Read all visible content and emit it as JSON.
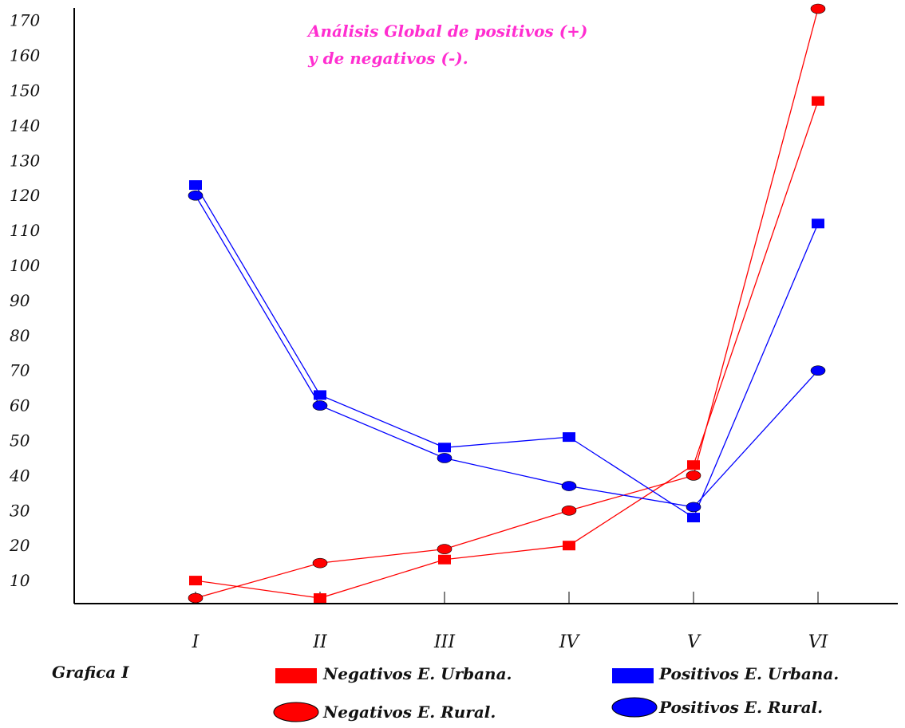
{
  "chart_data": {
    "type": "line",
    "title_lines": [
      "Análisis Global de positivos (+)",
      "y de negativos (-)."
    ],
    "caption": "Grafica I",
    "categories": [
      "I",
      "II",
      "III",
      "IV",
      "V",
      "VI"
    ],
    "y_ticks": [
      10,
      20,
      30,
      40,
      50,
      60,
      70,
      80,
      90,
      100,
      110,
      120,
      130,
      140,
      150,
      160,
      170
    ],
    "ylim": [
      0,
      170
    ],
    "grid": false,
    "legend_position": "bottom",
    "series": [
      {
        "name": "Negativos E. Urbana.",
        "color": "#ff0000",
        "marker": "square",
        "values": [
          10,
          5,
          16,
          20,
          43,
          147
        ]
      },
      {
        "name": "Negativos E. Rural.",
        "color": "#ff0000",
        "marker": "ellipse",
        "values": [
          5,
          15,
          19,
          30,
          40,
          175
        ]
      },
      {
        "name": "Positivos E. Urbana.",
        "color": "#0000ff",
        "marker": "square",
        "values": [
          123,
          63,
          48,
          51,
          28,
          112
        ]
      },
      {
        "name": "Positivos E. Rural.",
        "color": "#0000ff",
        "marker": "ellipse",
        "values": [
          120,
          60,
          45,
          37,
          31,
          70
        ]
      }
    ]
  }
}
